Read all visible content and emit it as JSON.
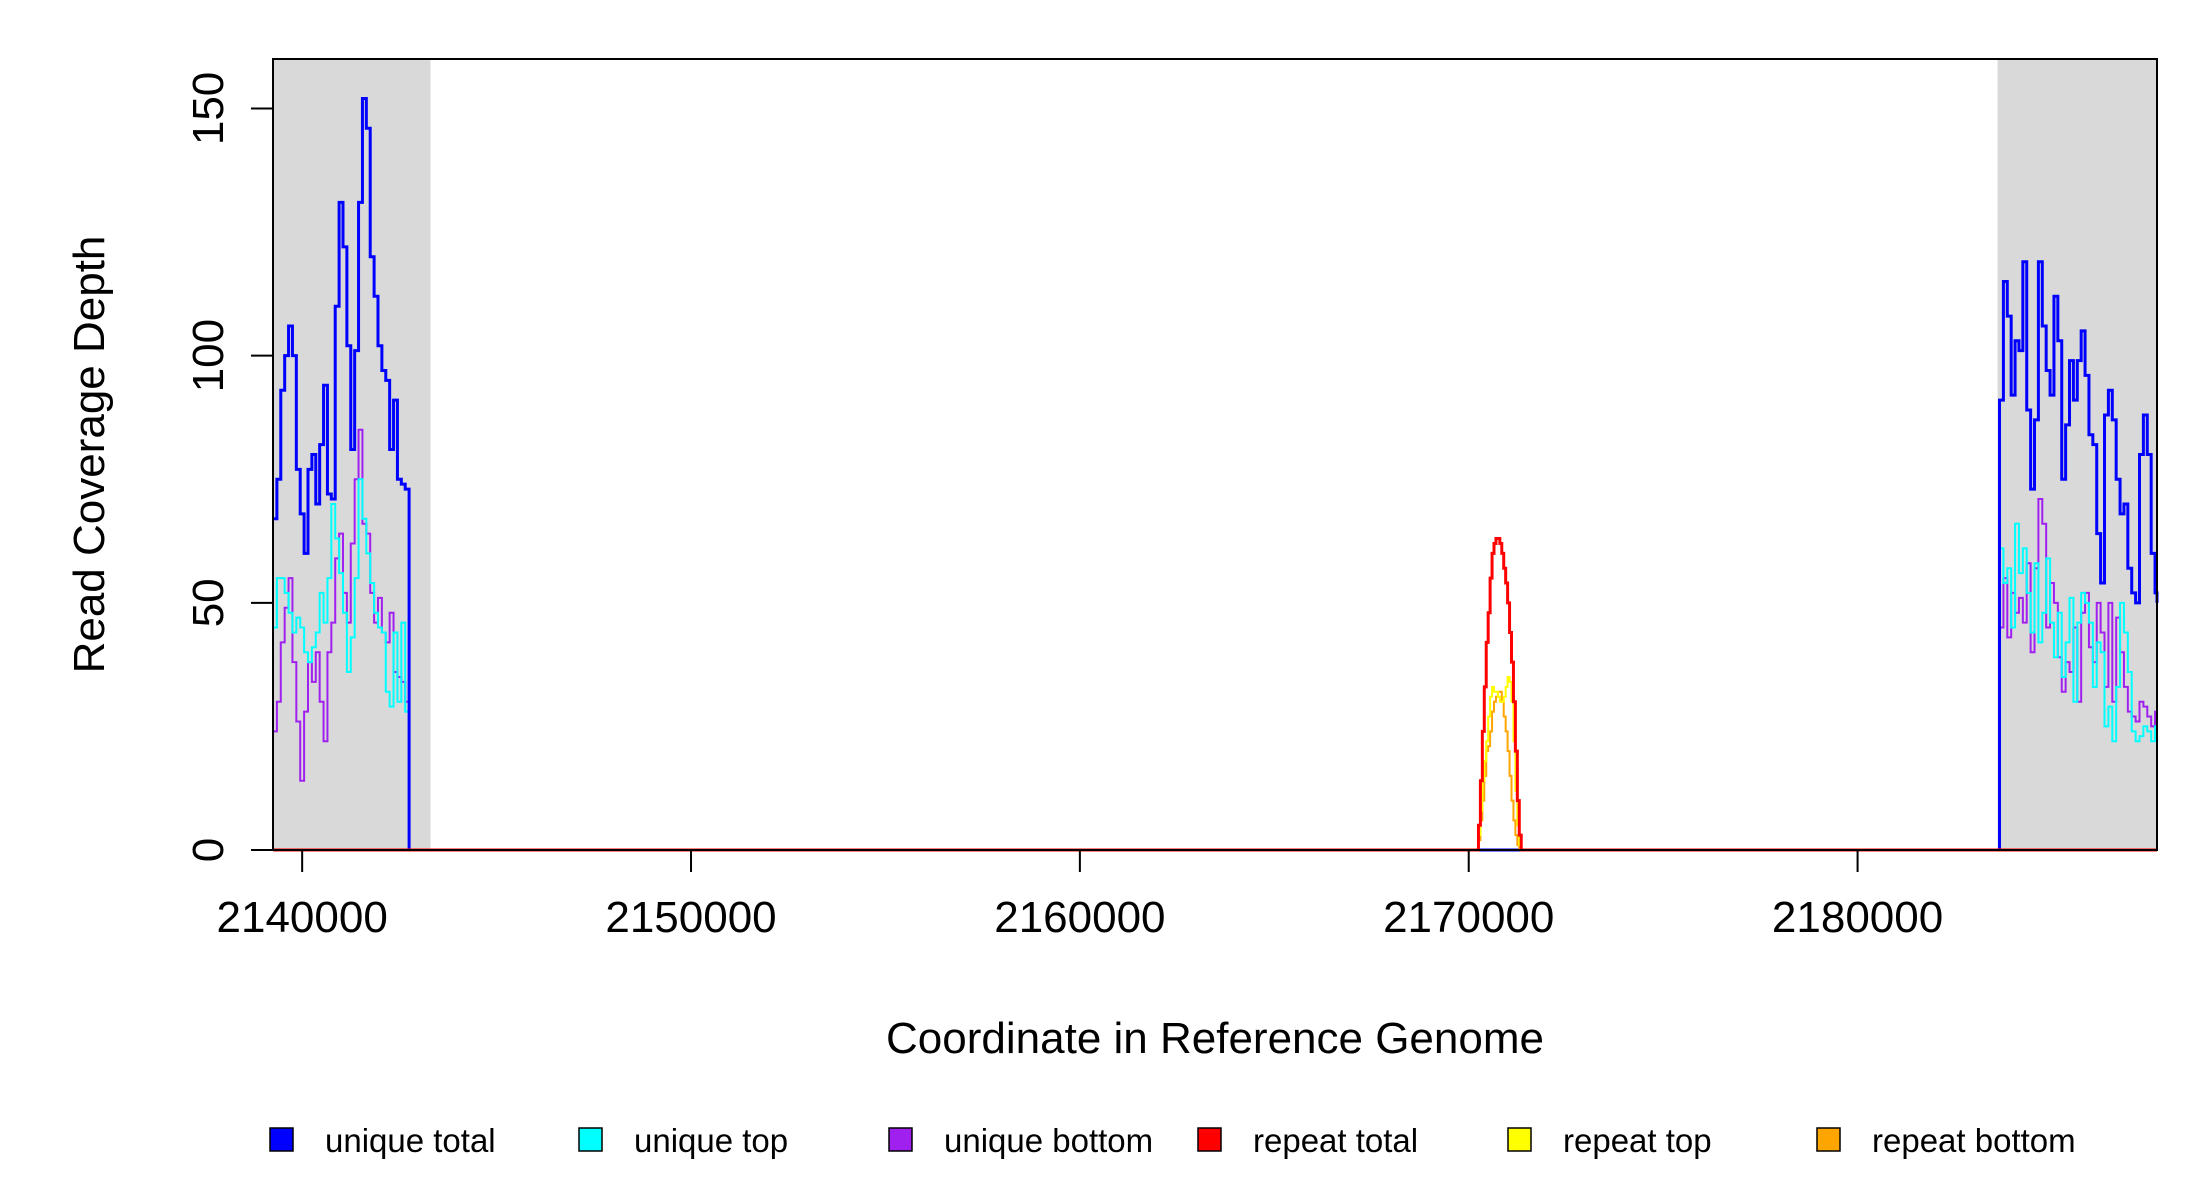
{
  "chart_data": {
    "type": "line",
    "title": "",
    "xlabel": "Coordinate in Reference Genome",
    "ylabel": "Read Coverage Depth",
    "xlim": [
      2139250,
      2187700
    ],
    "ylim": [
      0,
      160
    ],
    "xticks": [
      2140000,
      2150000,
      2160000,
      2170000,
      2180000
    ],
    "yticks": [
      0,
      50,
      100,
      150
    ],
    "grid": false,
    "legend_position": "bottom",
    "shaded_regions": [
      {
        "x0": 2139250,
        "x1": 2143300,
        "color": "#d9d9d9"
      },
      {
        "x0": 2183600,
        "x1": 2187700,
        "color": "#d9d9d9"
      }
    ],
    "series": [
      {
        "name": "unique total",
        "color": "#0000ff",
        "width": 3,
        "x": [
          2139250,
          2139350,
          2139450,
          2139550,
          2139650,
          2139750,
          2139850,
          2139950,
          2140050,
          2140150,
          2140250,
          2140350,
          2140450,
          2140550,
          2140650,
          2140750,
          2140850,
          2140950,
          2141050,
          2141150,
          2141250,
          2141350,
          2141450,
          2141550,
          2141650,
          2141750,
          2141850,
          2141950,
          2142050,
          2142150,
          2142250,
          2142350,
          2142450,
          2142550,
          2142650,
          2142750,
          2142850,
          2142950,
          2143050,
          2143150,
          2143250,
          2143350,
          2143400,
          2183600,
          2183650,
          2183750,
          2183850,
          2183950,
          2184050,
          2184150,
          2184250,
          2184350,
          2184450,
          2184550,
          2184650,
          2184750,
          2184850,
          2184950,
          2185050,
          2185150,
          2185250,
          2185350,
          2185450,
          2185550,
          2185650,
          2185750,
          2185850,
          2185950,
          2186050,
          2186150,
          2186250,
          2186350,
          2186450,
          2186550,
          2186650,
          2186750,
          2186850,
          2186950,
          2187050,
          2187150,
          2187250,
          2187350,
          2187450,
          2187550,
          2187650,
          2187700
        ],
        "values": [
          67,
          75,
          93,
          100,
          106,
          100,
          77,
          68,
          60,
          77,
          80,
          70,
          82,
          94,
          72,
          71,
          110,
          131,
          122,
          102,
          81,
          101,
          131,
          152,
          146,
          120,
          112,
          102,
          97,
          95,
          81,
          91,
          75,
          74,
          73,
          0,
          0,
          0,
          0,
          0,
          0,
          0,
          0,
          0,
          91,
          115,
          108,
          92,
          103,
          101,
          119,
          89,
          73,
          87,
          119,
          106,
          97,
          92,
          112,
          103,
          75,
          86,
          99,
          91,
          99,
          105,
          96,
          84,
          82,
          64,
          54,
          88,
          93,
          87,
          75,
          68,
          70,
          57,
          52,
          50,
          80,
          88,
          80,
          60,
          52,
          50
        ],
        "points_note": ""
      },
      {
        "name": "unique top",
        "color": "#00ffff",
        "width": 2,
        "x": [
          2139250,
          2139350,
          2139450,
          2139550,
          2139650,
          2139750,
          2139850,
          2139950,
          2140050,
          2140150,
          2140250,
          2140350,
          2140450,
          2140550,
          2140650,
          2140750,
          2140850,
          2140950,
          2141050,
          2141150,
          2141250,
          2141350,
          2141450,
          2141550,
          2141650,
          2141750,
          2141850,
          2141950,
          2142050,
          2142150,
          2142250,
          2142350,
          2142450,
          2142550,
          2142650,
          2142750,
          2142850,
          2142950,
          2143050,
          2143150,
          2143250,
          2143350,
          2143400,
          2183600,
          2183650,
          2183750,
          2183850,
          2183950,
          2184050,
          2184150,
          2184250,
          2184350,
          2184450,
          2184550,
          2184650,
          2184750,
          2184850,
          2184950,
          2185050,
          2185150,
          2185250,
          2185350,
          2185450,
          2185550,
          2185650,
          2185750,
          2185850,
          2185950,
          2186050,
          2186150,
          2186250,
          2186350,
          2186450,
          2186550,
          2186650,
          2186750,
          2186850,
          2186950,
          2187050,
          2187150,
          2187250,
          2187350,
          2187450,
          2187550,
          2187650,
          2187700
        ],
        "values": [
          45,
          55,
          55,
          52,
          48,
          44,
          47,
          45,
          40,
          38,
          41,
          44,
          52,
          46,
          55,
          70,
          63,
          56,
          48,
          36,
          43,
          55,
          75,
          67,
          60,
          54,
          48,
          45,
          44,
          32,
          29,
          44,
          30,
          46,
          28,
          0,
          0,
          0,
          0,
          0,
          0,
          0,
          0,
          0,
          61,
          54,
          57,
          45,
          66,
          56,
          61,
          52,
          44,
          58,
          42,
          48,
          59,
          46,
          39,
          48,
          35,
          42,
          51,
          30,
          46,
          52,
          50,
          46,
          33,
          42,
          40,
          25,
          29,
          22,
          33,
          50,
          44,
          36,
          24,
          22,
          23,
          25,
          24,
          22,
          25,
          22
        ]
      },
      {
        "name": "unique bottom",
        "color": "#a020f0",
        "width": 2,
        "x": [
          2139250,
          2139350,
          2139450,
          2139550,
          2139650,
          2139750,
          2139850,
          2139950,
          2140050,
          2140150,
          2140250,
          2140350,
          2140450,
          2140550,
          2140650,
          2140750,
          2140850,
          2140950,
          2141050,
          2141150,
          2141250,
          2141350,
          2141450,
          2141550,
          2141650,
          2141750,
          2141850,
          2141950,
          2142050,
          2142150,
          2142250,
          2142350,
          2142450,
          2142550,
          2142650,
          2142750,
          2142850,
          2142950,
          2143050,
          2143150,
          2143250,
          2143350,
          2143400,
          2183600,
          2183650,
          2183750,
          2183850,
          2183950,
          2184050,
          2184150,
          2184250,
          2184350,
          2184450,
          2184550,
          2184650,
          2184750,
          2184850,
          2184950,
          2185050,
          2185150,
          2185250,
          2185350,
          2185450,
          2185550,
          2185650,
          2185750,
          2185850,
          2185950,
          2186050,
          2186150,
          2186250,
          2186350,
          2186450,
          2186550,
          2186650,
          2186750,
          2186850,
          2186950,
          2187050,
          2187150,
          2187250,
          2187350,
          2187450,
          2187550,
          2187650,
          2187700
        ],
        "values": [
          24,
          30,
          42,
          49,
          55,
          38,
          26,
          14,
          28,
          38,
          34,
          40,
          30,
          22,
          40,
          46,
          59,
          64,
          52,
          46,
          62,
          75,
          85,
          66,
          64,
          52,
          46,
          51,
          44,
          42,
          48,
          36,
          35,
          34,
          30,
          0,
          0,
          0,
          0,
          0,
          0,
          0,
          0,
          0,
          45,
          55,
          43,
          52,
          48,
          51,
          46,
          58,
          40,
          57,
          71,
          66,
          45,
          54,
          50,
          39,
          32,
          38,
          36,
          45,
          30,
          48,
          52,
          41,
          38,
          50,
          44,
          33,
          50,
          30,
          47,
          40,
          33,
          28,
          27,
          26,
          30,
          29,
          27,
          25,
          28,
          29
        ]
      },
      {
        "name": "repeat total",
        "color": "#ff0000",
        "width": 3,
        "x": [
          2139250,
          2170200,
          2170250,
          2170300,
          2170350,
          2170400,
          2170450,
          2170500,
          2170550,
          2170600,
          2170650,
          2170700,
          2170750,
          2170800,
          2170850,
          2170900,
          2170950,
          2171000,
          2171050,
          2171100,
          2171150,
          2171200,
          2171250,
          2171300,
          2171350,
          2171400,
          2171450,
          2171500,
          2171550,
          2187700
        ],
        "values": [
          0,
          0,
          5,
          14,
          24,
          33,
          42,
          48,
          55,
          60,
          62,
          63,
          63,
          62,
          60,
          57,
          54,
          50,
          44,
          38,
          30,
          20,
          10,
          3,
          0,
          0,
          0,
          0,
          0,
          0
        ]
      },
      {
        "name": "repeat top",
        "color": "#ffff00",
        "width": 2,
        "x": [
          2139250,
          2170200,
          2170250,
          2170300,
          2170350,
          2170400,
          2170450,
          2170500,
          2170550,
          2170600,
          2170650,
          2170700,
          2170750,
          2170800,
          2170850,
          2170900,
          2170950,
          2171000,
          2171050,
          2171100,
          2171150,
          2171200,
          2171250,
          2171300,
          2171350,
          2171400,
          2171450,
          2171500,
          2171550,
          2187700
        ],
        "values": [
          0,
          0,
          3,
          8,
          14,
          18,
          22,
          27,
          31,
          33,
          32,
          32,
          31,
          30,
          30,
          31,
          33,
          35,
          34,
          30,
          22,
          12,
          5,
          1,
          0,
          0,
          0,
          0,
          0,
          0
        ]
      },
      {
        "name": "repeat bottom",
        "color": "#ffa500",
        "width": 2,
        "x": [
          2139250,
          2170200,
          2170250,
          2170300,
          2170350,
          2170400,
          2170450,
          2170500,
          2170550,
          2170600,
          2170650,
          2170700,
          2170750,
          2170800,
          2170850,
          2170900,
          2170950,
          2171000,
          2171050,
          2171100,
          2171150,
          2171200,
          2171250,
          2171300,
          2171350,
          2171400,
          2171450,
          2171500,
          2171550,
          2187700
        ],
        "values": [
          0,
          0,
          2,
          6,
          10,
          15,
          20,
          21,
          24,
          28,
          30,
          31,
          32,
          32,
          30,
          27,
          24,
          20,
          15,
          10,
          6,
          3,
          1,
          0,
          0,
          0,
          0,
          0,
          0,
          0
        ]
      }
    ]
  }
}
